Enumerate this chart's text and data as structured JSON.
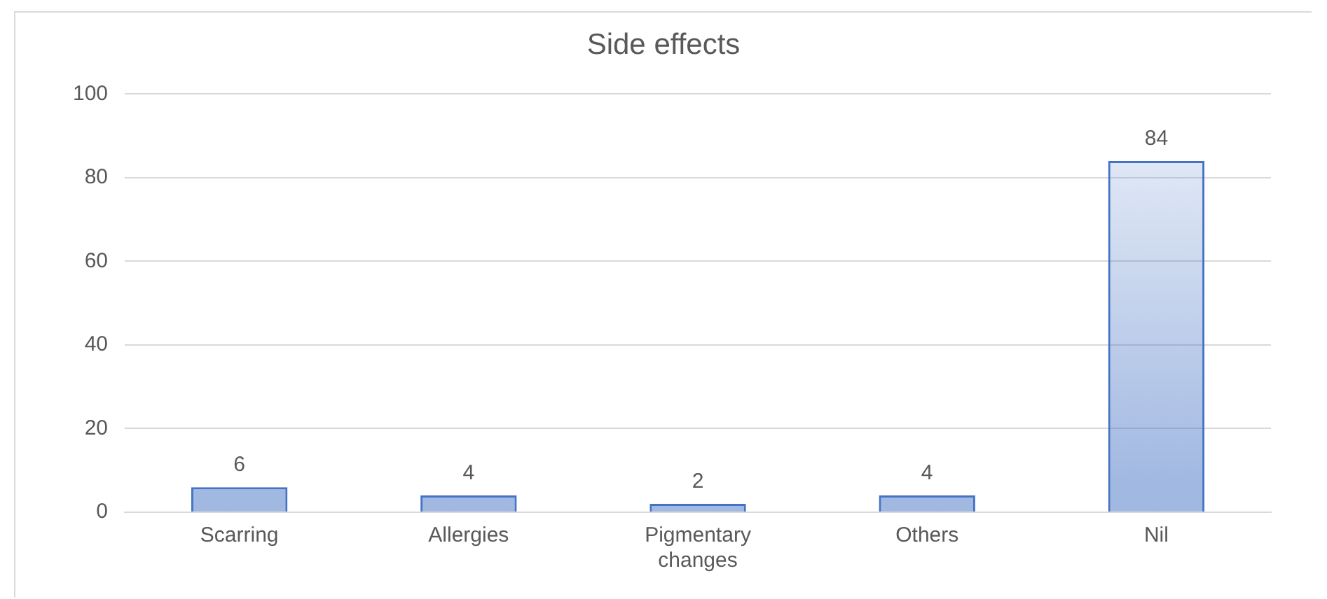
{
  "chart_data": {
    "type": "bar",
    "title": "Side effects",
    "categories": [
      "Scarring",
      "Allergies",
      "Pigmentary changes",
      "Others",
      "Nil"
    ],
    "values": [
      6,
      4,
      2,
      4,
      84
    ],
    "color": "#4472c4",
    "ylim": [
      0,
      100
    ],
    "yticks": [
      0,
      20,
      40,
      60,
      80,
      100
    ],
    "grid": "y",
    "data_labels": true,
    "legend": false
  }
}
